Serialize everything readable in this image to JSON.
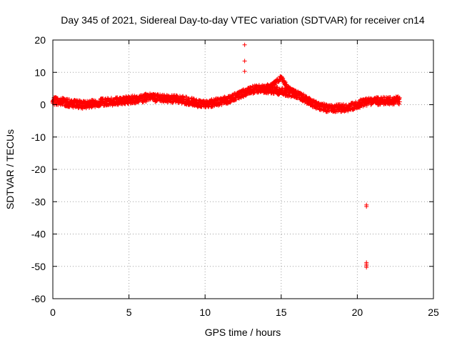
{
  "chart_data": {
    "type": "scatter",
    "title": "Day 345 of 2021, Sidereal Day-to-day VTEC variation (SDTVAR) for receiver cn14",
    "xlabel": "GPS time / hours",
    "ylabel": "SDTVAR / TECUs",
    "xlim": [
      0,
      25
    ],
    "ylim": [
      -60,
      20
    ],
    "xticks": [
      0,
      5,
      10,
      15,
      20,
      25
    ],
    "xtick_labels": [
      "0",
      "5",
      "10",
      "15",
      "20",
      "25"
    ],
    "yticks": [
      -60,
      -50,
      -40,
      -30,
      -20,
      -10,
      0,
      10,
      20
    ],
    "ytick_labels": [
      "-60",
      "-50",
      "-40",
      "-30",
      "-20",
      "-10",
      "0",
      "10",
      "20"
    ],
    "grid": true,
    "marker": "+",
    "marker_color": "#ff0000",
    "series": [
      {
        "name": "SDTVAR",
        "color": "#ff0000",
        "trend_x": [
          0,
          0.5,
          1,
          1.5,
          2,
          2.5,
          3,
          3.5,
          4,
          4.5,
          5,
          5.5,
          6,
          6.3,
          6.8,
          7.5,
          8,
          8.5,
          9,
          9.5,
          10,
          10.5,
          11,
          11.5,
          12,
          12.5,
          13,
          13.5,
          14,
          14.5,
          15,
          15.5,
          16,
          16.5,
          17,
          17.5,
          18,
          18.5,
          19,
          19.5,
          20,
          20.5,
          21,
          21.5,
          22,
          22.5,
          22.8
        ],
        "trend_y": [
          1.2,
          1.0,
          0.5,
          0.2,
          0.0,
          0.3,
          0.6,
          0.8,
          1.0,
          1.2,
          1.5,
          1.7,
          2.0,
          2.4,
          2.0,
          1.8,
          1.7,
          1.5,
          1.0,
          0.5,
          0.0,
          0.5,
          1.0,
          1.5,
          2.5,
          3.5,
          4.5,
          5.0,
          4.8,
          4.5,
          4.2,
          3.8,
          3.2,
          2.0,
          0.5,
          -0.5,
          -1.0,
          -1.0,
          -1.0,
          -0.8,
          0.0,
          0.8,
          1.0,
          1.2,
          1.2,
          1.3,
          1.3
        ],
        "branch_x": [
          13.5,
          14,
          14.5,
          14.8,
          15,
          15.2,
          15.5,
          16
        ],
        "branch_y": [
          4.8,
          5.5,
          6.5,
          7.5,
          8.5,
          7.0,
          5.0,
          3.5
        ],
        "outliers_x": [
          12.6,
          12.6,
          12.6,
          20.6,
          20.6,
          20.6,
          20.6,
          20.6,
          20.6
        ],
        "outliers_y": [
          18.5,
          13.5,
          10.3,
          -31,
          -31.5,
          -48.8,
          -49.3,
          -49.8,
          -50.3
        ]
      }
    ]
  }
}
